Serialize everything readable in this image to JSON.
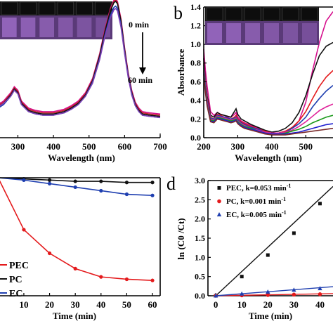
{
  "panels": {
    "a": {
      "label": "",
      "annotation_start": "0 min",
      "annotation_end": "60 min"
    },
    "b": {
      "label": "b"
    },
    "c": {
      "label": ""
    },
    "d": {
      "label": "d"
    }
  },
  "chart_data": [
    {
      "id": "a",
      "type": "line",
      "title": "",
      "xlabel": "Wavelength (nm)",
      "ylabel": "",
      "xlim": [
        230,
        700
      ],
      "ylim": [
        0,
        1.15
      ],
      "x_ticks": [
        300,
        400,
        500,
        600,
        700
      ],
      "y_ticks": [],
      "grid": false,
      "legend": "none",
      "x": [
        230,
        250,
        260,
        280,
        290,
        300,
        310,
        330,
        350,
        370,
        400,
        430,
        450,
        470,
        490,
        510,
        530,
        545,
        560,
        570,
        575,
        580,
        590,
        600,
        610,
        620,
        630,
        640,
        650,
        670,
        700
      ],
      "series": [
        {
          "color": "#d6108d",
          "values": [
            0.44,
            0.29,
            0.31,
            0.38,
            0.43,
            0.4,
            0.31,
            0.25,
            0.23,
            0.22,
            0.22,
            0.24,
            0.27,
            0.31,
            0.38,
            0.5,
            0.71,
            0.92,
            1.09,
            1.16,
            1.17,
            1.15,
            1.0,
            0.76,
            0.55,
            0.4,
            0.3,
            0.25,
            0.22,
            0.21,
            0.2
          ]
        },
        {
          "color": "#c8202f",
          "values": [
            0.43,
            0.28,
            0.3,
            0.37,
            0.42,
            0.39,
            0.3,
            0.24,
            0.22,
            0.21,
            0.21,
            0.23,
            0.26,
            0.3,
            0.37,
            0.49,
            0.7,
            0.91,
            1.08,
            1.15,
            1.16,
            1.14,
            0.99,
            0.75,
            0.54,
            0.39,
            0.29,
            0.24,
            0.21,
            0.2,
            0.19
          ]
        },
        {
          "color": "#111111",
          "values": [
            0.42,
            0.27,
            0.29,
            0.36,
            0.41,
            0.38,
            0.29,
            0.23,
            0.21,
            0.2,
            0.2,
            0.22,
            0.25,
            0.29,
            0.36,
            0.48,
            0.69,
            0.9,
            1.07,
            1.14,
            1.15,
            1.13,
            0.98,
            0.74,
            0.53,
            0.38,
            0.28,
            0.23,
            0.2,
            0.19,
            0.18
          ]
        },
        {
          "color": "#1f3fb0",
          "values": [
            0.41,
            0.26,
            0.28,
            0.35,
            0.4,
            0.37,
            0.28,
            0.22,
            0.2,
            0.19,
            0.19,
            0.21,
            0.24,
            0.28,
            0.35,
            0.47,
            0.67,
            0.87,
            1.03,
            1.1,
            1.11,
            1.09,
            0.95,
            0.72,
            0.52,
            0.37,
            0.27,
            0.22,
            0.19,
            0.18,
            0.17
          ]
        },
        {
          "color": "#7d3fb3",
          "values": [
            0.42,
            0.27,
            0.29,
            0.35,
            0.4,
            0.37,
            0.28,
            0.22,
            0.2,
            0.19,
            0.19,
            0.21,
            0.24,
            0.28,
            0.35,
            0.46,
            0.66,
            0.86,
            1.01,
            1.08,
            1.09,
            1.07,
            0.93,
            0.71,
            0.51,
            0.36,
            0.27,
            0.22,
            0.19,
            0.18,
            0.17
          ]
        }
      ]
    },
    {
      "id": "b",
      "type": "line",
      "title": "",
      "xlabel": "Wavelength (nm)",
      "ylabel": "Absorbance",
      "xlim": [
        200,
        580
      ],
      "ylim": [
        0,
        1.4
      ],
      "x_ticks": [
        200,
        300,
        400,
        500
      ],
      "y_ticks": [
        0.0,
        0.2,
        0.4,
        0.6,
        0.8,
        1.0,
        1.2,
        1.4
      ],
      "grid": false,
      "legend": "none",
      "x": [
        200,
        205,
        210,
        220,
        230,
        240,
        250,
        260,
        270,
        280,
        290,
        295,
        300,
        310,
        320,
        340,
        360,
        380,
        400,
        420,
        440,
        460,
        480,
        500,
        520,
        540,
        560,
        580
      ],
      "series": [
        {
          "color": "#d6108d",
          "values": [
            0.95,
            0.72,
            0.55,
            0.28,
            0.24,
            0.27,
            0.25,
            0.24,
            0.22,
            0.22,
            0.25,
            0.27,
            0.22,
            0.18,
            0.16,
            0.13,
            0.1,
            0.07,
            0.05,
            0.05,
            0.07,
            0.1,
            0.18,
            0.38,
            0.72,
            1.02,
            1.25,
            1.35
          ]
        },
        {
          "color": "#111111",
          "values": [
            0.85,
            0.6,
            0.45,
            0.24,
            0.22,
            0.27,
            0.25,
            0.24,
            0.23,
            0.22,
            0.28,
            0.31,
            0.25,
            0.2,
            0.18,
            0.14,
            0.11,
            0.08,
            0.06,
            0.07,
            0.1,
            0.16,
            0.27,
            0.45,
            0.68,
            0.88,
            0.98,
            1.02
          ]
        },
        {
          "color": "#e41a1c",
          "values": [
            0.8,
            0.58,
            0.42,
            0.22,
            0.2,
            0.25,
            0.24,
            0.22,
            0.21,
            0.2,
            0.22,
            0.24,
            0.2,
            0.17,
            0.15,
            0.12,
            0.09,
            0.07,
            0.05,
            0.05,
            0.07,
            0.11,
            0.18,
            0.28,
            0.42,
            0.55,
            0.65,
            0.72
          ]
        },
        {
          "color": "#1f3fb0",
          "values": [
            0.78,
            0.56,
            0.4,
            0.21,
            0.2,
            0.24,
            0.23,
            0.22,
            0.21,
            0.2,
            0.21,
            0.22,
            0.19,
            0.16,
            0.14,
            0.11,
            0.09,
            0.06,
            0.05,
            0.05,
            0.06,
            0.1,
            0.15,
            0.22,
            0.33,
            0.42,
            0.5,
            0.56
          ]
        },
        {
          "color": "#e0229a",
          "values": [
            0.75,
            0.54,
            0.38,
            0.2,
            0.19,
            0.23,
            0.22,
            0.21,
            0.2,
            0.19,
            0.2,
            0.21,
            0.18,
            0.15,
            0.13,
            0.1,
            0.08,
            0.06,
            0.05,
            0.05,
            0.06,
            0.08,
            0.12,
            0.17,
            0.23,
            0.29,
            0.33,
            0.36
          ]
        },
        {
          "color": "#1a9a1a",
          "values": [
            0.72,
            0.52,
            0.36,
            0.19,
            0.18,
            0.22,
            0.21,
            0.2,
            0.19,
            0.18,
            0.19,
            0.2,
            0.17,
            0.14,
            0.12,
            0.1,
            0.07,
            0.05,
            0.04,
            0.04,
            0.05,
            0.07,
            0.09,
            0.12,
            0.16,
            0.19,
            0.22,
            0.24
          ]
        },
        {
          "color": "#1f1fd0",
          "values": [
            0.7,
            0.5,
            0.35,
            0.18,
            0.17,
            0.21,
            0.2,
            0.19,
            0.18,
            0.17,
            0.18,
            0.19,
            0.16,
            0.13,
            0.11,
            0.09,
            0.07,
            0.05,
            0.04,
            0.04,
            0.04,
            0.05,
            0.06,
            0.08,
            0.1,
            0.12,
            0.14,
            0.15
          ]
        },
        {
          "color": "#7a2a2a",
          "values": [
            0.68,
            0.48,
            0.34,
            0.17,
            0.16,
            0.2,
            0.19,
            0.18,
            0.17,
            0.16,
            0.17,
            0.18,
            0.15,
            0.12,
            0.1,
            0.08,
            0.06,
            0.04,
            0.03,
            0.03,
            0.03,
            0.04,
            0.05,
            0.06,
            0.07,
            0.08,
            0.09,
            0.1
          ]
        }
      ]
    },
    {
      "id": "c",
      "type": "line",
      "title": "",
      "xlabel": "Time (min)",
      "ylabel": "",
      "xlim": [
        -2,
        63
      ],
      "ylim": [
        0,
        1.0
      ],
      "x_ticks": [
        10,
        20,
        30,
        40,
        50,
        60
      ],
      "y_ticks": [],
      "grid": false,
      "legend": "bottom-left",
      "x": [
        0,
        10,
        20,
        30,
        40,
        50,
        60
      ],
      "series": [
        {
          "name": "PEC",
          "color": "#e41a1c",
          "values": [
            1.0,
            0.56,
            0.36,
            0.23,
            0.16,
            0.14,
            0.13
          ]
        },
        {
          "name": "PC",
          "color": "#111111",
          "values": [
            1.0,
            0.99,
            0.98,
            0.97,
            0.97,
            0.96,
            0.96
          ]
        },
        {
          "name": "EC",
          "color": "#1f3fb0",
          "values": [
            1.0,
            0.98,
            0.95,
            0.92,
            0.89,
            0.86,
            0.85
          ]
        }
      ]
    },
    {
      "id": "d",
      "type": "scatter",
      "title": "",
      "xlabel": "Time (min)",
      "ylabel": "ln (C0 /Ct)",
      "xlim": [
        -3,
        45
      ],
      "ylim": [
        0,
        3.0
      ],
      "x_ticks": [
        0,
        10,
        20,
        30,
        40
      ],
      "y_ticks": [
        0.0,
        0.5,
        1.0,
        1.5,
        2.0,
        2.5,
        3.0
      ],
      "grid": false,
      "legend": "top-left",
      "x": [
        0,
        10,
        20,
        30,
        40
      ],
      "series": [
        {
          "name": "PEC,  k=0.053 min",
          "marker": "square",
          "color": "#111111",
          "values": [
            0.0,
            0.5,
            1.06,
            1.63,
            2.4
          ],
          "fit": [
            0.0,
            2.53
          ]
        },
        {
          "name": "PC,  k=0.001 min",
          "marker": "circle",
          "color": "#e41a1c",
          "values": [
            0.0,
            0.01,
            0.02,
            0.03,
            0.04
          ],
          "fit": [
            0.0,
            0.05
          ]
        },
        {
          "name": "EC,  k=0.005 min",
          "marker": "triangle",
          "color": "#1f3fb0",
          "values": [
            0.0,
            0.05,
            0.1,
            0.15,
            0.19
          ],
          "fit": [
            0.0,
            0.21
          ]
        }
      ]
    }
  ]
}
